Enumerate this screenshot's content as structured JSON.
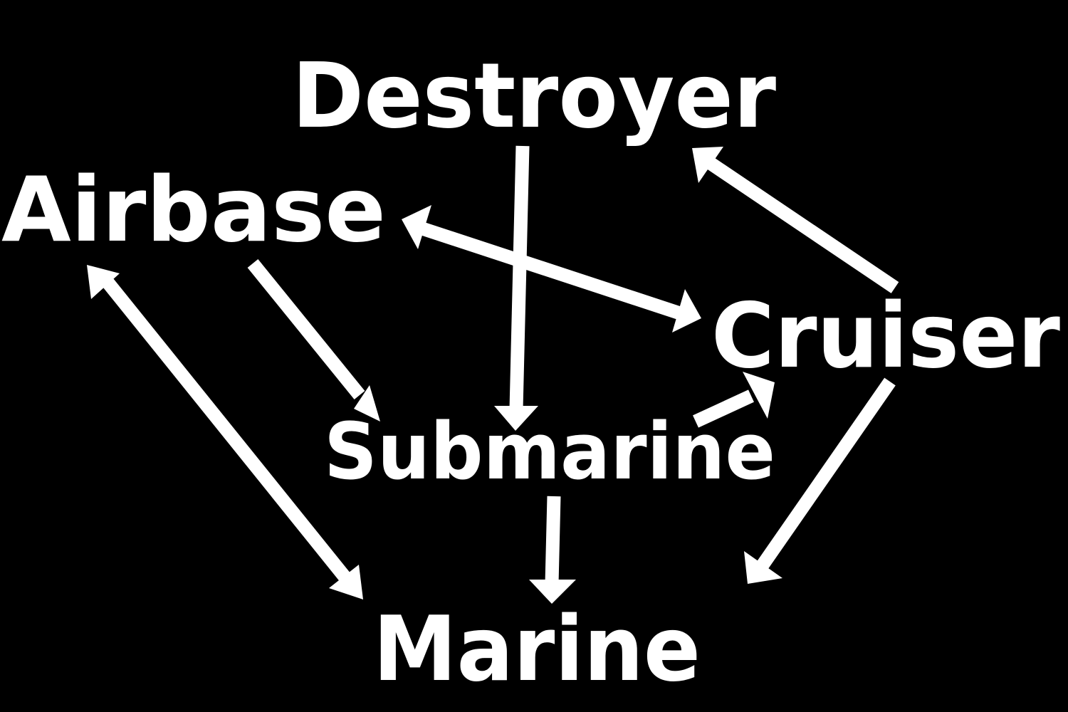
{
  "colors": {
    "background": "#000000",
    "foreground": "#ffffff"
  },
  "nodes": {
    "destroyer": "Destroyer",
    "airbase": "Airbase",
    "cruiser": "Cruiser",
    "submarine": "Submarine",
    "marine": "Marine"
  },
  "edges": [
    {
      "from": "Destroyer",
      "to": "Submarine"
    },
    {
      "from": "Cruiser",
      "to": "Destroyer"
    },
    {
      "from": "Airbase",
      "to": "Cruiser",
      "bidirectional": true
    },
    {
      "from": "Airbase",
      "to": "Submarine"
    },
    {
      "from": "Submarine",
      "to": "Cruiser"
    },
    {
      "from": "Airbase",
      "to": "Marine",
      "bidirectional": true
    },
    {
      "from": "Submarine",
      "to": "Marine"
    },
    {
      "from": "Cruiser",
      "to": "Marine"
    }
  ]
}
